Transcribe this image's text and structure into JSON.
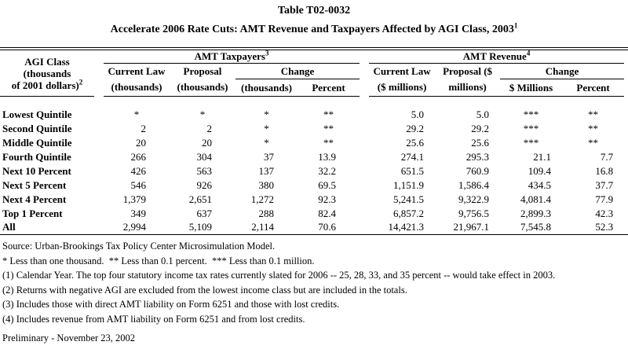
{
  "page": {
    "background": "#ffffff",
    "text_color": "#000000"
  },
  "title": {
    "line1": "Table T02-0032",
    "line2": "Accelerate 2006 Rate Cuts: AMT Revenue and Taxpayers Affected by AGI Class, 2003",
    "line2_superscript": "1"
  },
  "table": {
    "stub": {
      "line1": "AGI Class (thousands",
      "line2": "of 2001 dollars)",
      "superscript": "2"
    },
    "group1": {
      "label": "AMT Taxpayers",
      "superscript": "3",
      "col1": {
        "line1": "Current Law",
        "line2": "(thousands)"
      },
      "col2": {
        "line1": "Proposal",
        "line2": "(thousands)"
      },
      "change": {
        "label": "Change",
        "col3": "(thousands)",
        "col4": "Percent"
      }
    },
    "group2": {
      "label": "AMT Revenue",
      "superscript": "4",
      "col1": {
        "line1": "Current Law",
        "line2": "($ millions)"
      },
      "col2": {
        "line1": "Proposal ($",
        "line2": "millions)"
      },
      "change": {
        "label": "Change",
        "col3": "$ Millions",
        "col4": "Percent"
      }
    },
    "rows": [
      {
        "label": "Lowest Quintile",
        "values": [
          "*",
          "*",
          "*",
          "**",
          "5.0",
          "5.0",
          "***",
          "**"
        ]
      },
      {
        "label": "Second Quintile",
        "values": [
          "2",
          "2",
          "*",
          "**",
          "29.2",
          "29.2",
          "***",
          "**"
        ]
      },
      {
        "label": "Middle Quintile",
        "values": [
          "20",
          "20",
          "*",
          "**",
          "25.6",
          "25.6",
          "***",
          "**"
        ]
      },
      {
        "label": "Fourth Quintile",
        "values": [
          "266",
          "304",
          "37",
          "13.9",
          "274.1",
          "295.3",
          "21.1",
          "7.7"
        ]
      },
      {
        "label": "Next 10 Percent",
        "values": [
          "426",
          "563",
          "137",
          "32.2",
          "651.5",
          "760.9",
          "109.4",
          "16.8"
        ]
      },
      {
        "label": "Next 5 Percent",
        "values": [
          "546",
          "926",
          "380",
          "69.5",
          "1,151.9",
          "1,586.4",
          "434.5",
          "37.7"
        ]
      },
      {
        "label": "Next 4 Percent",
        "values": [
          "1,379",
          "2,651",
          "1,272",
          "92.3",
          "5,241.5",
          "9,322.9",
          "4,081.4",
          "77.9"
        ]
      },
      {
        "label": "Top 1 Percent",
        "values": [
          "349",
          "637",
          "288",
          "82.4",
          "6,857.2",
          "9,756.5",
          "2,899.3",
          "42.3"
        ]
      },
      {
        "label": "All",
        "values": [
          "2,994",
          "5,109",
          "2,114",
          "70.6",
          "14,421.3",
          "21,967.1",
          "7,545.8",
          "52.3"
        ]
      }
    ]
  },
  "notes": [
    "Source: Urban-Brookings Tax Policy Center Microsimulation Model.",
    "* Less than one thousand.  ** Less than 0.1 percent.  *** Less than 0.1 million.",
    "(1) Calendar Year. The top four statutory income tax rates currently slated for 2006 -- 25, 28, 33, and 35 percent -- would take effect in 2003.",
    "(2) Returns with negative AGI are excluded from the lowest income class but are included in the totals.",
    "(3) Includes those with direct AMT liability on Form 6251 and those with lost credits.",
    "(4) Includes revenue from AMT liability on Form 6251 and from lost credits."
  ],
  "footer": "Preliminary - November 23, 2002"
}
